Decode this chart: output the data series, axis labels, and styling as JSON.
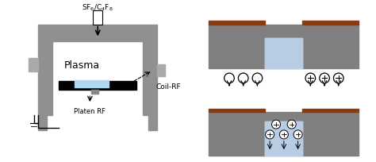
{
  "bg_color": "#ffffff",
  "chamber_color": "#909090",
  "wall_dark": "#606060",
  "plasma_color": "#b0d8f0",
  "silicon_color": "#808080",
  "mask_color": "#8B3A10",
  "etch_fill_color": "#b8cce4",
  "label_sf6": "SF$_6$/C$_4$F$_8$",
  "label_plasma": "Plasma",
  "label_coilrf": "Coil-RF",
  "label_platenrf": "Platen RF"
}
